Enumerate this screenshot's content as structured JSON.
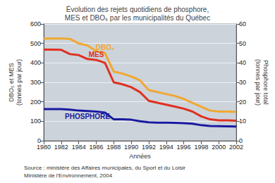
{
  "chart_data": {
    "type": "line",
    "title": "Évolution des rejets quotidiens de phosphore,\nMES et DBO₅ par les municipalités du Québec",
    "xlabel": "Années",
    "ylabel": "DBO₅ et MES\n(tonnes par jour)",
    "y2label": "Phosphore total\n(tonnes par jour)",
    "source": [
      "Source : ministère des Affaires municipales, du Sport et du Loisir",
      "Ministère de l'Environnement, 2004"
    ],
    "x": [
      1980,
      1981,
      1982,
      1983,
      1984,
      1985,
      1986,
      1987,
      1988,
      1989,
      1990,
      1991,
      1992,
      1993,
      1994,
      1995,
      1996,
      1997,
      1998,
      1999,
      2000,
      2001,
      2002
    ],
    "series": [
      {
        "name": "DBO₅",
        "color": "#f0a830",
        "values": [
          525,
          525,
          525,
          523,
          500,
          490,
          460,
          450,
          355,
          345,
          330,
          310,
          260,
          250,
          240,
          230,
          215,
          195,
          175,
          155,
          150,
          150,
          148
        ]
      },
      {
        "name": "MES",
        "color": "#e03020",
        "values": [
          468,
          468,
          467,
          445,
          440,
          420,
          415,
          400,
          300,
          290,
          275,
          250,
          205,
          195,
          185,
          175,
          165,
          150,
          125,
          110,
          105,
          105,
          103
        ]
      },
      {
        "name": "PHOSPHORE",
        "color": "#1a1aa0",
        "axis": "y2",
        "values": [
          16.3,
          16.3,
          16.3,
          16,
          15.5,
          15.3,
          15,
          14.5,
          11,
          11,
          10.8,
          10,
          9.5,
          9.3,
          9.3,
          9.2,
          9,
          8.8,
          8,
          7.6,
          7.5,
          7.4,
          7.3
        ]
      }
    ],
    "xlim": [
      1980,
      2002
    ],
    "xticks": [
      1980,
      1982,
      1984,
      1986,
      1988,
      1990,
      1992,
      1994,
      1996,
      1998,
      2000,
      2002
    ],
    "ylim": [
      0,
      600
    ],
    "yticks": [
      0,
      100,
      200,
      300,
      400,
      500,
      600
    ],
    "y2lim": [
      0,
      60
    ],
    "y2ticks": [
      0,
      10,
      20,
      30,
      40,
      50,
      60
    ],
    "grid": true
  }
}
